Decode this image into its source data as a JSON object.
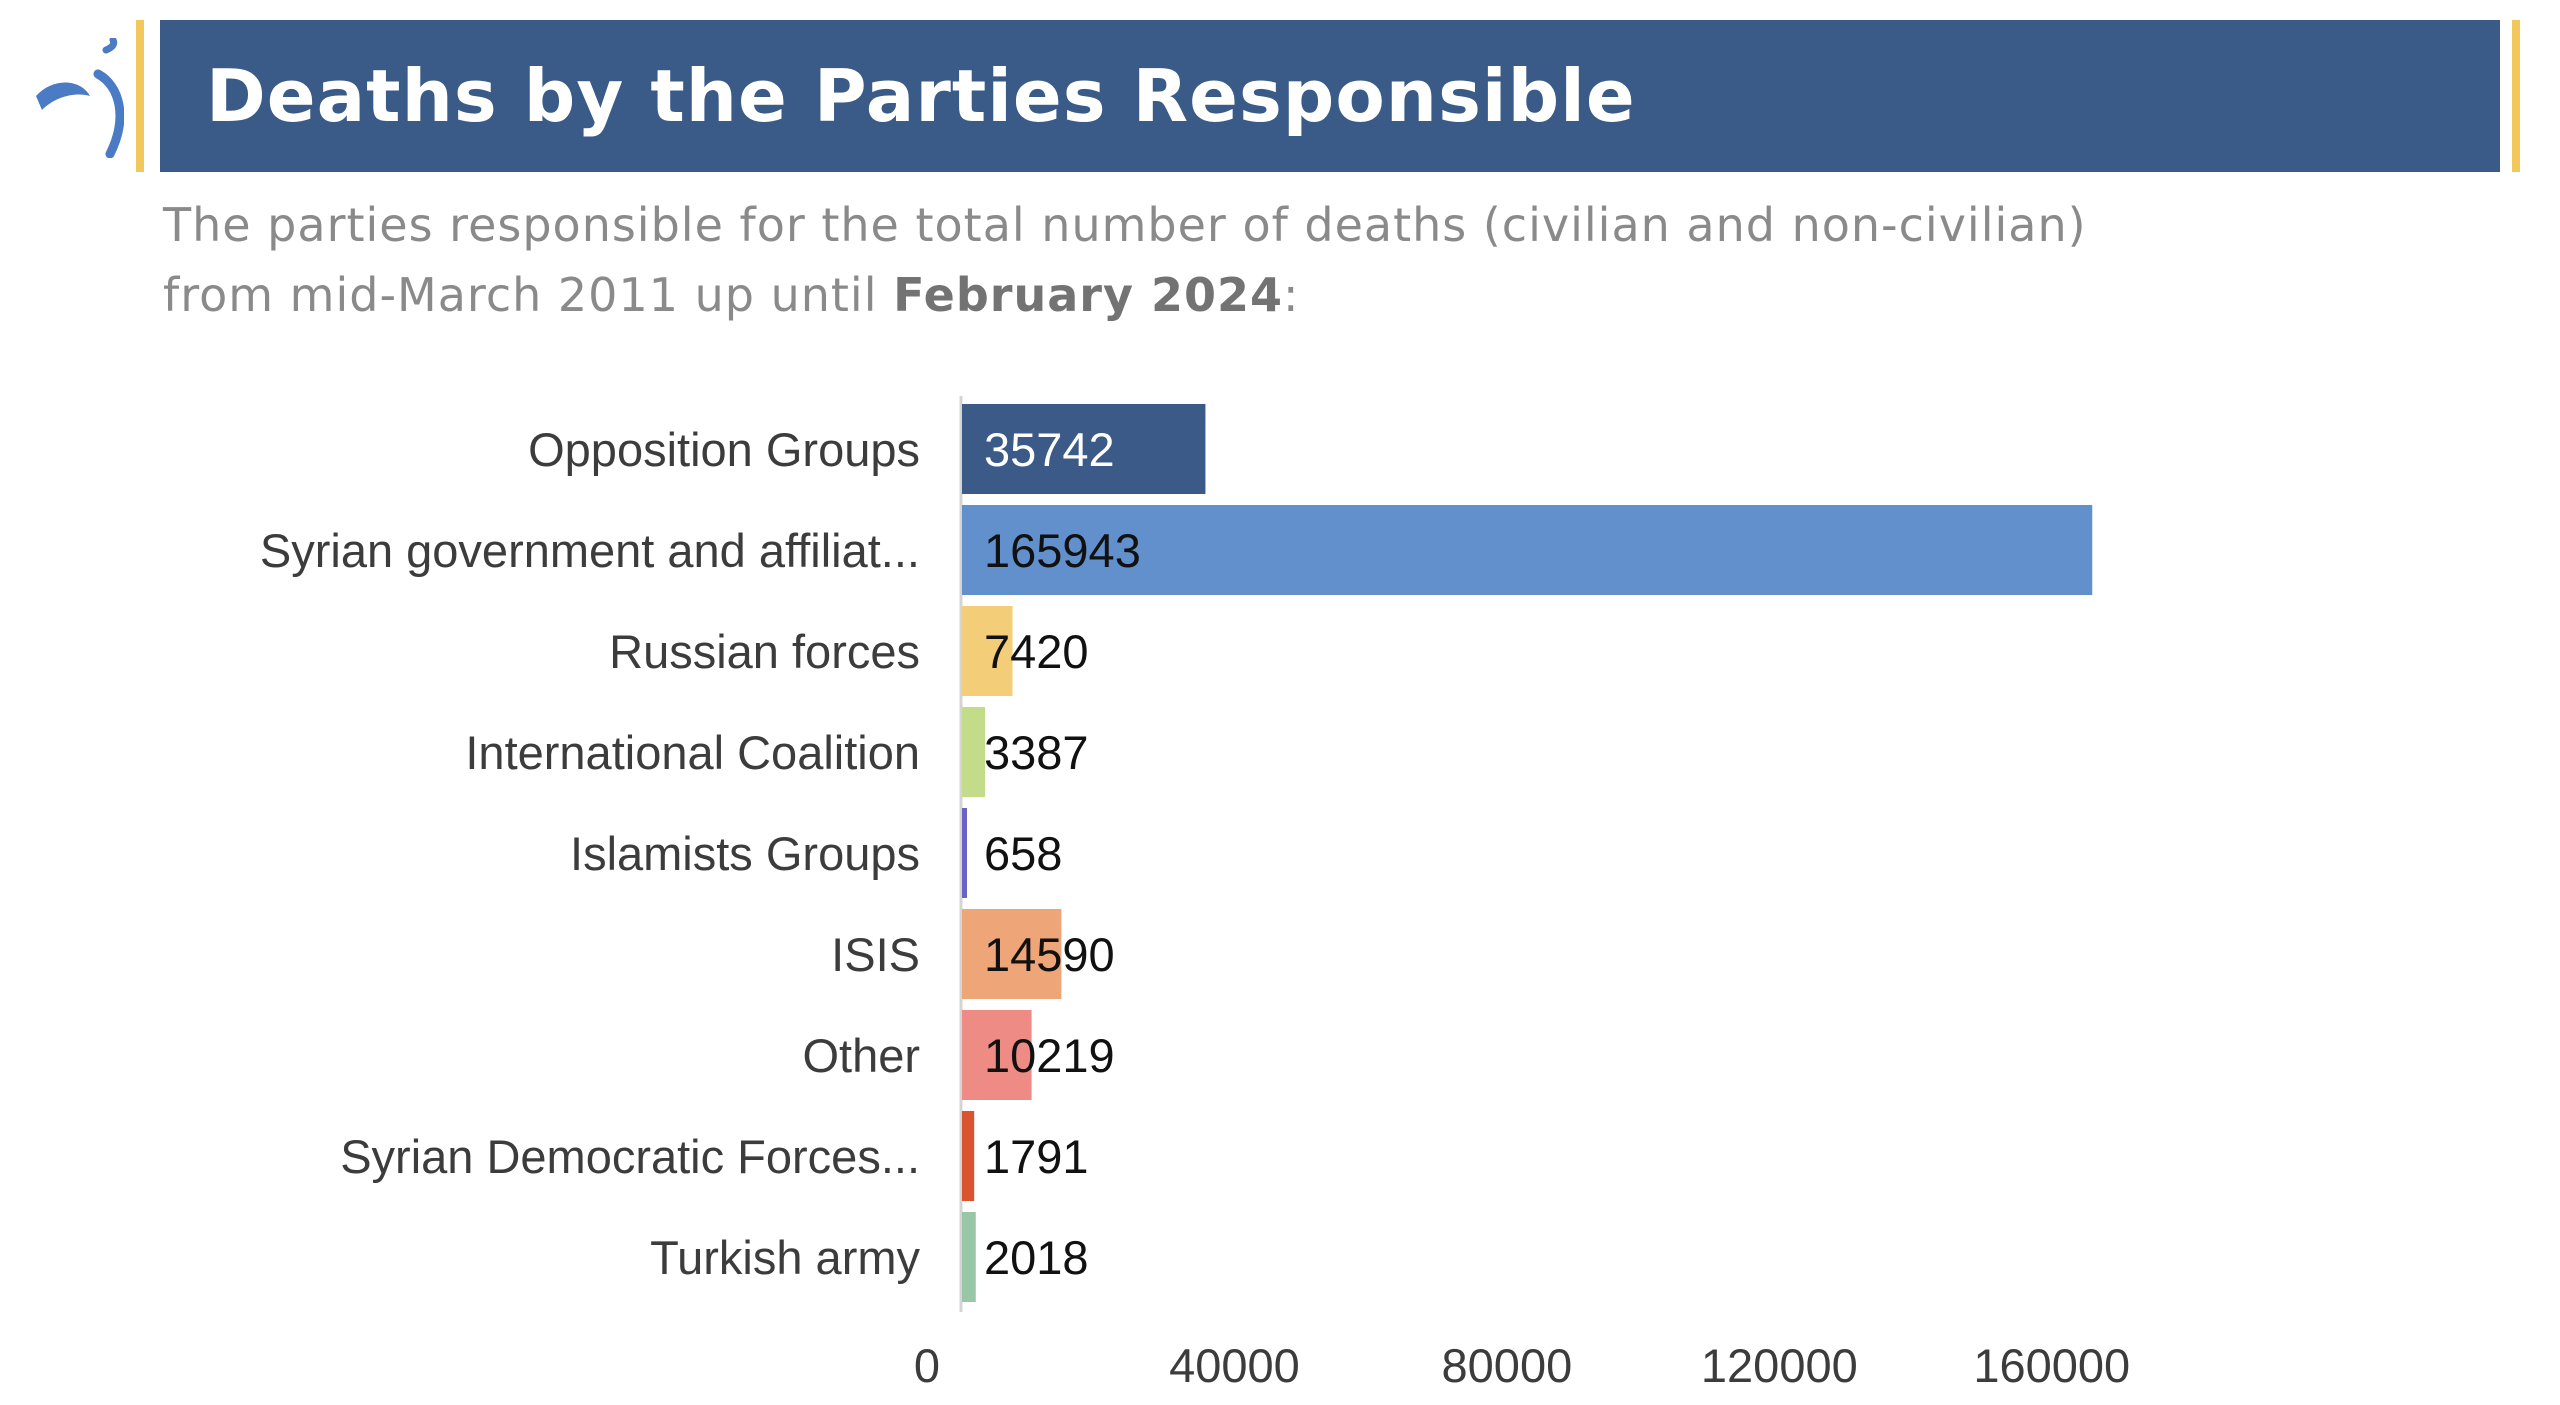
{
  "header": {
    "title": "Deaths by the Parties Responsible",
    "logo_icon": "crescent-logo-icon",
    "accent_color": "#f2c75c",
    "banner_color": "#3a5a87"
  },
  "subtitle": {
    "line1": "The parties responsible for the total number of deaths (civilian and non-civilian)",
    "line2_prefix": "from mid-March 2011 up until ",
    "line2_bold": "February 2024",
    "line2_suffix": ":"
  },
  "chart_data": {
    "type": "bar",
    "orientation": "horizontal",
    "title": "",
    "xlabel": "",
    "ylabel": "",
    "grid": false,
    "categories": [
      "Opposition Groups",
      "Syrian government and affiliat...",
      "Russian forces",
      "International Coalition",
      "Islamists Groups",
      "ISIS",
      "Other",
      "Syrian Democratic Forces...",
      "Turkish army"
    ],
    "values": [
      35742,
      165943,
      7420,
      3387,
      658,
      14590,
      10219,
      1791,
      2018
    ],
    "colors": [
      "#3b5a88",
      "#6190cc",
      "#f4cd78",
      "#c2dc8a",
      "#6b62c4",
      "#eea577",
      "#ee8b84",
      "#d9532e",
      "#98c6a6"
    ],
    "label_colors": [
      "#ffffff",
      "#111111",
      "#111111",
      "#111111",
      "#111111",
      "#111111",
      "#111111",
      "#111111",
      "#111111"
    ],
    "xticks": [
      0,
      40000,
      80000,
      120000,
      160000
    ],
    "xlim": [
      0,
      180000
    ]
  }
}
